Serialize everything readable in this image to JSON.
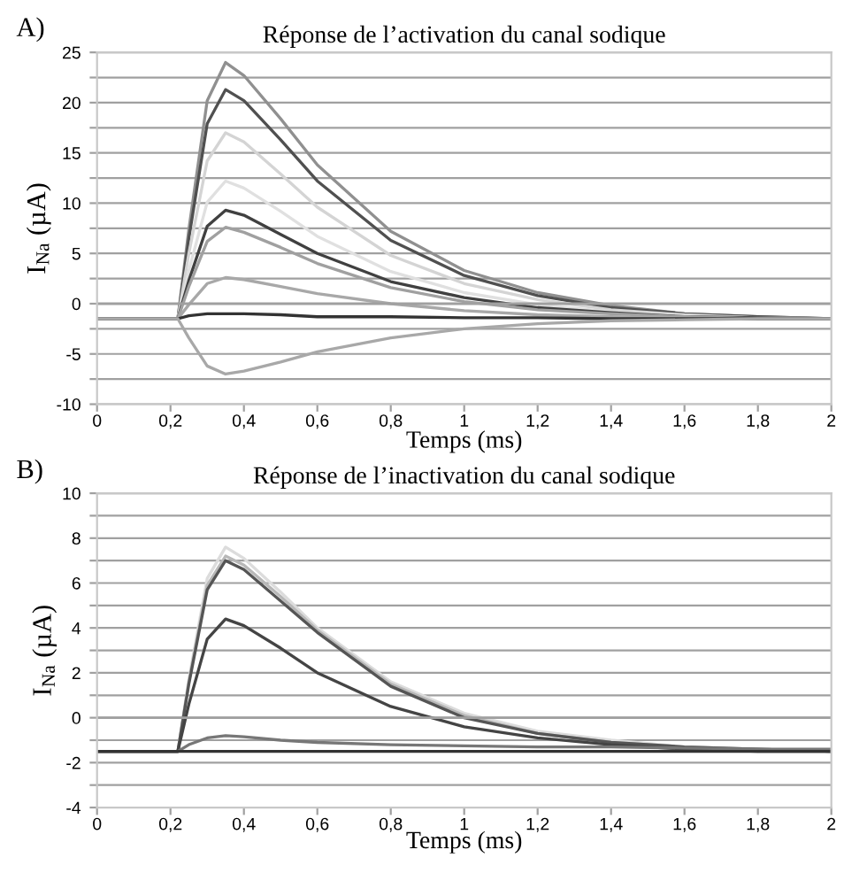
{
  "chart_data": [
    {
      "type": "line",
      "title": "Réponse de l’activation du canal sodique",
      "xlabel": "Temps (ms)",
      "ylabel": "I$_{Na}$ (µA)",
      "annotations": [
        "A)"
      ],
      "x": [
        0,
        0.2,
        0.22,
        0.25,
        0.3,
        0.35,
        0.4,
        0.5,
        0.6,
        0.8,
        1.0,
        1.2,
        1.4,
        1.6,
        1.8,
        2.0
      ],
      "series": [
        {
          "color": "#909090",
          "values": [
            -1.5,
            -1.5,
            -1.5,
            7.4,
            20.2,
            24,
            22.7,
            18.4,
            13.8,
            7.2,
            3.3,
            1.1,
            -0.2,
            -1.0,
            -1.3,
            -1.5
          ]
        },
        {
          "color": "#505050",
          "values": [
            -1.5,
            -1.5,
            -1.5,
            6.5,
            17.9,
            21.3,
            20.2,
            16.3,
            12.2,
            6.3,
            2.8,
            0.8,
            -0.4,
            -1.0,
            -1.3,
            -1.5
          ]
        },
        {
          "color": "#d4d4d4",
          "values": [
            -1.5,
            -1.5,
            -1.5,
            5.0,
            14.2,
            17,
            16.1,
            12.9,
            9.6,
            4.8,
            2.0,
            0.4,
            -0.6,
            -1.1,
            -1.4,
            -1.5
          ]
        },
        {
          "color": "#e0e0e0",
          "values": [
            -1.5,
            -1.5,
            -1.5,
            3.3,
            10.1,
            12.2,
            11.5,
            9.2,
            6.7,
            3.2,
            1.1,
            -0.1,
            -0.8,
            -1.2,
            -1.4,
            -1.5
          ]
        },
        {
          "color": "#404040",
          "values": [
            -1.5,
            -1.5,
            -1.5,
            2.3,
            7.7,
            9.3,
            8.8,
            6.9,
            5.0,
            2.2,
            0.6,
            -0.4,
            -0.9,
            -1.3,
            -1.4,
            -1.5
          ]
        },
        {
          "color": "#a0a0a0",
          "values": [
            -1.5,
            -1.5,
            -1.5,
            1.7,
            6.2,
            7.6,
            7.1,
            5.6,
            4.0,
            1.6,
            0.2,
            -0.6,
            -1.0,
            -1.3,
            -1.5,
            -1.5
          ]
        },
        {
          "color": "#a8a8a8",
          "values": [
            -1.5,
            -1.5,
            -1.5,
            -0.1,
            2.0,
            2.6,
            2.4,
            1.7,
            1.0,
            0.0,
            -0.7,
            -1.1,
            -1.3,
            -1.4,
            -1.5,
            -1.5
          ]
        },
        {
          "color": "#333333",
          "values": [
            -1.5,
            -1.5,
            -1.5,
            -1.2,
            -1.0,
            -1.0,
            -1.0,
            -1.1,
            -1.3,
            -1.3,
            -1.4,
            -1.4,
            -1.5,
            -1.5,
            -1.5,
            -1.5
          ]
        },
        {
          "color": "#a8a8a8",
          "values": [
            -1.5,
            -1.5,
            -1.5,
            -3.4,
            -6.2,
            -7,
            -6.7,
            -5.8,
            -4.8,
            -3.4,
            -2.5,
            -2.0,
            -1.7,
            -1.6,
            -1.5,
            -1.5
          ]
        }
      ],
      "xlim": [
        0,
        2
      ],
      "ylim": [
        -10,
        25
      ],
      "xticks": [
        0,
        {
          "value": 0.2,
          "label": "0,2"
        },
        {
          "value": 0.4,
          "label": "0,4"
        },
        {
          "value": 0.6,
          "label": "0,6"
        },
        {
          "value": 0.8,
          "label": "0,8"
        },
        1,
        {
          "value": 1.2,
          "label": "1,2"
        },
        {
          "value": 1.4,
          "label": "1,4"
        },
        {
          "value": 1.6,
          "label": "1,6"
        },
        {
          "value": 1.8,
          "label": "1,8"
        },
        2
      ],
      "yticks": [
        -10,
        {
          "value": -7.5,
          "label": null
        },
        -5,
        {
          "value": -2.5,
          "label": null
        },
        0,
        {
          "value": 2.5,
          "label": null
        },
        5,
        {
          "value": 7.5,
          "label": null
        },
        10,
        {
          "value": 12.5,
          "label": null
        },
        15,
        {
          "value": 17.5,
          "label": null
        },
        20,
        {
          "value": 22.5,
          "label": null
        },
        25
      ],
      "grid": "y",
      "legend": false
    },
    {
      "type": "line",
      "title": "Réponse de l’inactivation du canal sodique",
      "xlabel": "Temps (ms)",
      "ylabel": "I$_{Na}$ (µA)",
      "annotations": [
        "B)"
      ],
      "x": [
        0,
        0.2,
        0.22,
        0.25,
        0.3,
        0.35,
        0.4,
        0.5,
        0.6,
        0.8,
        1.0,
        1.2,
        1.4,
        1.6,
        1.8,
        2.0
      ],
      "series": [
        {
          "color": "#dcdcdc",
          "values": [
            -1.5,
            -1.5,
            -1.5,
            1.7,
            6.2,
            7.6,
            7.1,
            5.6,
            4.0,
            1.6,
            0.2,
            -0.6,
            -1.0,
            -1.3,
            -1.4,
            -1.5
          ]
        },
        {
          "color": "#b8b8b8",
          "values": [
            -1.5,
            -1.5,
            -1.5,
            1.6,
            5.9,
            7.2,
            6.8,
            5.4,
            3.9,
            1.5,
            0.1,
            -0.7,
            -1.1,
            -1.3,
            -1.4,
            -1.5
          ]
        },
        {
          "color": "#555555",
          "values": [
            -1.5,
            -1.5,
            -1.5,
            1.5,
            5.7,
            7.0,
            6.6,
            5.2,
            3.8,
            1.4,
            0.0,
            -0.7,
            -1.1,
            -1.3,
            -1.4,
            -1.5
          ]
        },
        {
          "color": "#444444",
          "values": [
            -1.5,
            -1.5,
            -1.5,
            0.6,
            3.5,
            4.4,
            4.1,
            3.1,
            2.0,
            0.5,
            -0.4,
            -0.9,
            -1.2,
            -1.4,
            -1.5,
            -1.5
          ]
        },
        {
          "color": "#777777",
          "values": [
            -1.5,
            -1.5,
            -1.5,
            -1.2,
            -0.9,
            -0.8,
            -0.85,
            -1.0,
            -1.1,
            -1.2,
            -1.25,
            -1.3,
            -1.3,
            -1.35,
            -1.4,
            -1.4
          ]
        },
        {
          "color": "#333333",
          "values": [
            -1.5,
            -1.5,
            -1.5,
            -1.5,
            -1.5,
            -1.5,
            -1.5,
            -1.5,
            -1.5,
            -1.5,
            -1.5,
            -1.5,
            -1.5,
            -1.5,
            -1.5,
            -1.5
          ]
        }
      ],
      "xlim": [
        0,
        2
      ],
      "ylim": [
        -4,
        10
      ],
      "xticks": [
        0,
        {
          "value": 0.2,
          "label": "0,2"
        },
        {
          "value": 0.4,
          "label": "0,4"
        },
        {
          "value": 0.6,
          "label": "0,6"
        },
        {
          "value": 0.8,
          "label": "0,8"
        },
        1,
        {
          "value": 1.2,
          "label": "1,2"
        },
        {
          "value": 1.4,
          "label": "1,4"
        },
        {
          "value": 1.6,
          "label": "1,6"
        },
        {
          "value": 1.8,
          "label": "1,8"
        },
        2
      ],
      "yticks": [
        -4,
        {
          "value": -3,
          "label": null
        },
        -2,
        {
          "value": -1,
          "label": null
        },
        0,
        {
          "value": 1,
          "label": null
        },
        2,
        {
          "value": 3,
          "label": null
        },
        4,
        {
          "value": 5,
          "label": null
        },
        6,
        {
          "value": 7,
          "label": null
        },
        8,
        {
          "value": 9,
          "label": null
        },
        10
      ],
      "grid": "y",
      "legend": false
    }
  ]
}
